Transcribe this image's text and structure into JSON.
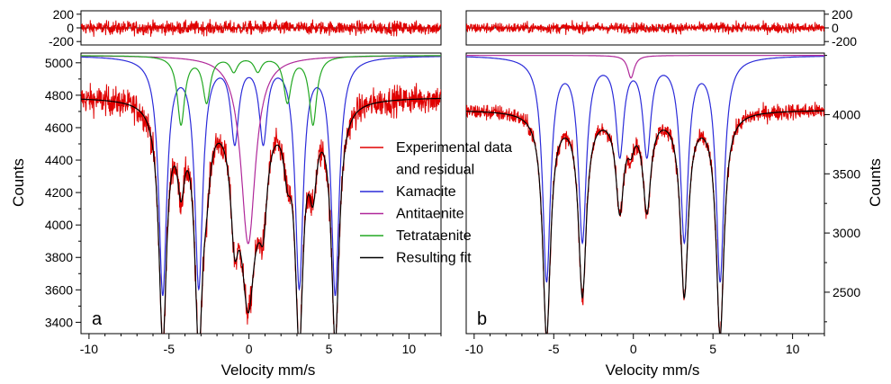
{
  "chart_data": [
    {
      "type": "line",
      "panel_label": "a",
      "xlabel": "Velocity mm/s",
      "ylabel": "Counts",
      "xlim": [
        -10.5,
        12
      ],
      "ylim": [
        3330,
        5060
      ],
      "x_ticks": [
        -10,
        -5,
        0,
        5,
        10
      ],
      "x_tick_labels": [
        "-10",
        "-5",
        "0",
        "5",
        "10"
      ],
      "y_ticks": [
        3400,
        3600,
        3800,
        4000,
        4200,
        4400,
        4600,
        4800,
        5000
      ],
      "y_tick_labels": [
        "3400",
        "3600",
        "3800",
        "4000",
        "4200",
        "4400",
        "4600",
        "4800",
        "5000"
      ],
      "baseline": 4790,
      "subcomponent_baseline": 5045,
      "residual": {
        "ylim": [
          -250,
          250
        ],
        "y_ticks": [
          200,
          0,
          -200
        ],
        "y_tick_labels": [
          "200",
          "0",
          "-200"
        ],
        "noise_amplitude": 70
      },
      "series": [
        {
          "name": "Kamacite",
          "color": "#2b2bd9",
          "lines": [
            {
              "x0": -5.39,
              "depth": 1450,
              "width": 0.3
            },
            {
              "x0": -3.14,
              "depth": 1400,
              "width": 0.3
            },
            {
              "x0": -0.89,
              "depth": 500,
              "width": 0.3
            },
            {
              "x0": 0.89,
              "depth": 500,
              "width": 0.3
            },
            {
              "x0": 3.14,
              "depth": 1400,
              "width": 0.3
            },
            {
              "x0": 5.39,
              "depth": 1450,
              "width": 0.3
            }
          ]
        },
        {
          "name": "Antitaenite",
          "color": "#b0289a",
          "lines": [
            {
              "x0": -0.05,
              "depth": 1160,
              "width": 0.55
            }
          ]
        },
        {
          "name": "Tetrataenite",
          "color": "#22a822",
          "lines": [
            {
              "x0": -4.25,
              "depth": 420,
              "width": 0.28
            },
            {
              "x0": -2.65,
              "depth": 280,
              "width": 0.28
            },
            {
              "x0": -0.95,
              "depth": 90,
              "width": 0.28
            },
            {
              "x0": 0.55,
              "depth": 90,
              "width": 0.28
            },
            {
              "x0": 2.4,
              "depth": 280,
              "width": 0.28
            },
            {
              "x0": 4.0,
              "depth": 420,
              "width": 0.28
            }
          ]
        },
        {
          "name": "Resulting fit",
          "color": "#000000"
        },
        {
          "name": "Experimental data and residual",
          "color": "#e00000"
        }
      ]
    },
    {
      "type": "line",
      "panel_label": "b",
      "xlabel": "Velocity mm/s",
      "ylabel": "Counts",
      "xlim": [
        -10.5,
        12
      ],
      "ylim": [
        2150,
        4520
      ],
      "x_ticks": [
        -10,
        -5,
        0,
        5,
        10
      ],
      "x_tick_labels": [
        "-10",
        "-5",
        "0",
        "5",
        "10"
      ],
      "y_ticks": [
        2500,
        3000,
        3500,
        4000
      ],
      "y_tick_labels": [
        "2500",
        "3000",
        "3500",
        "4000"
      ],
      "baseline": 4040,
      "subcomponent_baseline": 4500,
      "residual": {
        "ylim": [
          -250,
          250
        ],
        "y_ticks": [
          200,
          0,
          -200
        ],
        "y_tick_labels": [
          "200",
          "0",
          "-200"
        ],
        "noise_amplitude": 55
      },
      "series": [
        {
          "name": "Kamacite",
          "color": "#2b2bd9",
          "lines": [
            {
              "x0": -5.45,
              "depth": 1880,
              "width": 0.3
            },
            {
              "x0": -3.2,
              "depth": 1530,
              "width": 0.3
            },
            {
              "x0": -0.85,
              "depth": 800,
              "width": 0.3
            },
            {
              "x0": 0.85,
              "depth": 800,
              "width": 0.3
            },
            {
              "x0": 3.2,
              "depth": 1530,
              "width": 0.3
            },
            {
              "x0": 5.45,
              "depth": 1880,
              "width": 0.3
            }
          ]
        },
        {
          "name": "Antitaenite",
          "color": "#b0289a",
          "lines": [
            {
              "x0": -0.15,
              "depth": 190,
              "width": 0.25
            }
          ]
        },
        {
          "name": "Resulting fit",
          "color": "#000000"
        },
        {
          "name": "Experimental data and residual",
          "color": "#e00000"
        }
      ]
    }
  ],
  "legend": {
    "placement": "center",
    "entries": [
      {
        "label": "Experimental data",
        "color": "#e00000"
      },
      {
        "label": "and residual",
        "color": ""
      },
      {
        "label": "Kamacite",
        "color": "#2b2bd9"
      },
      {
        "label": "Antitaenite",
        "color": "#b0289a"
      },
      {
        "label": "Tetrataenite",
        "color": "#22a822"
      },
      {
        "label": "Resulting fit",
        "color": "#000000"
      }
    ]
  }
}
